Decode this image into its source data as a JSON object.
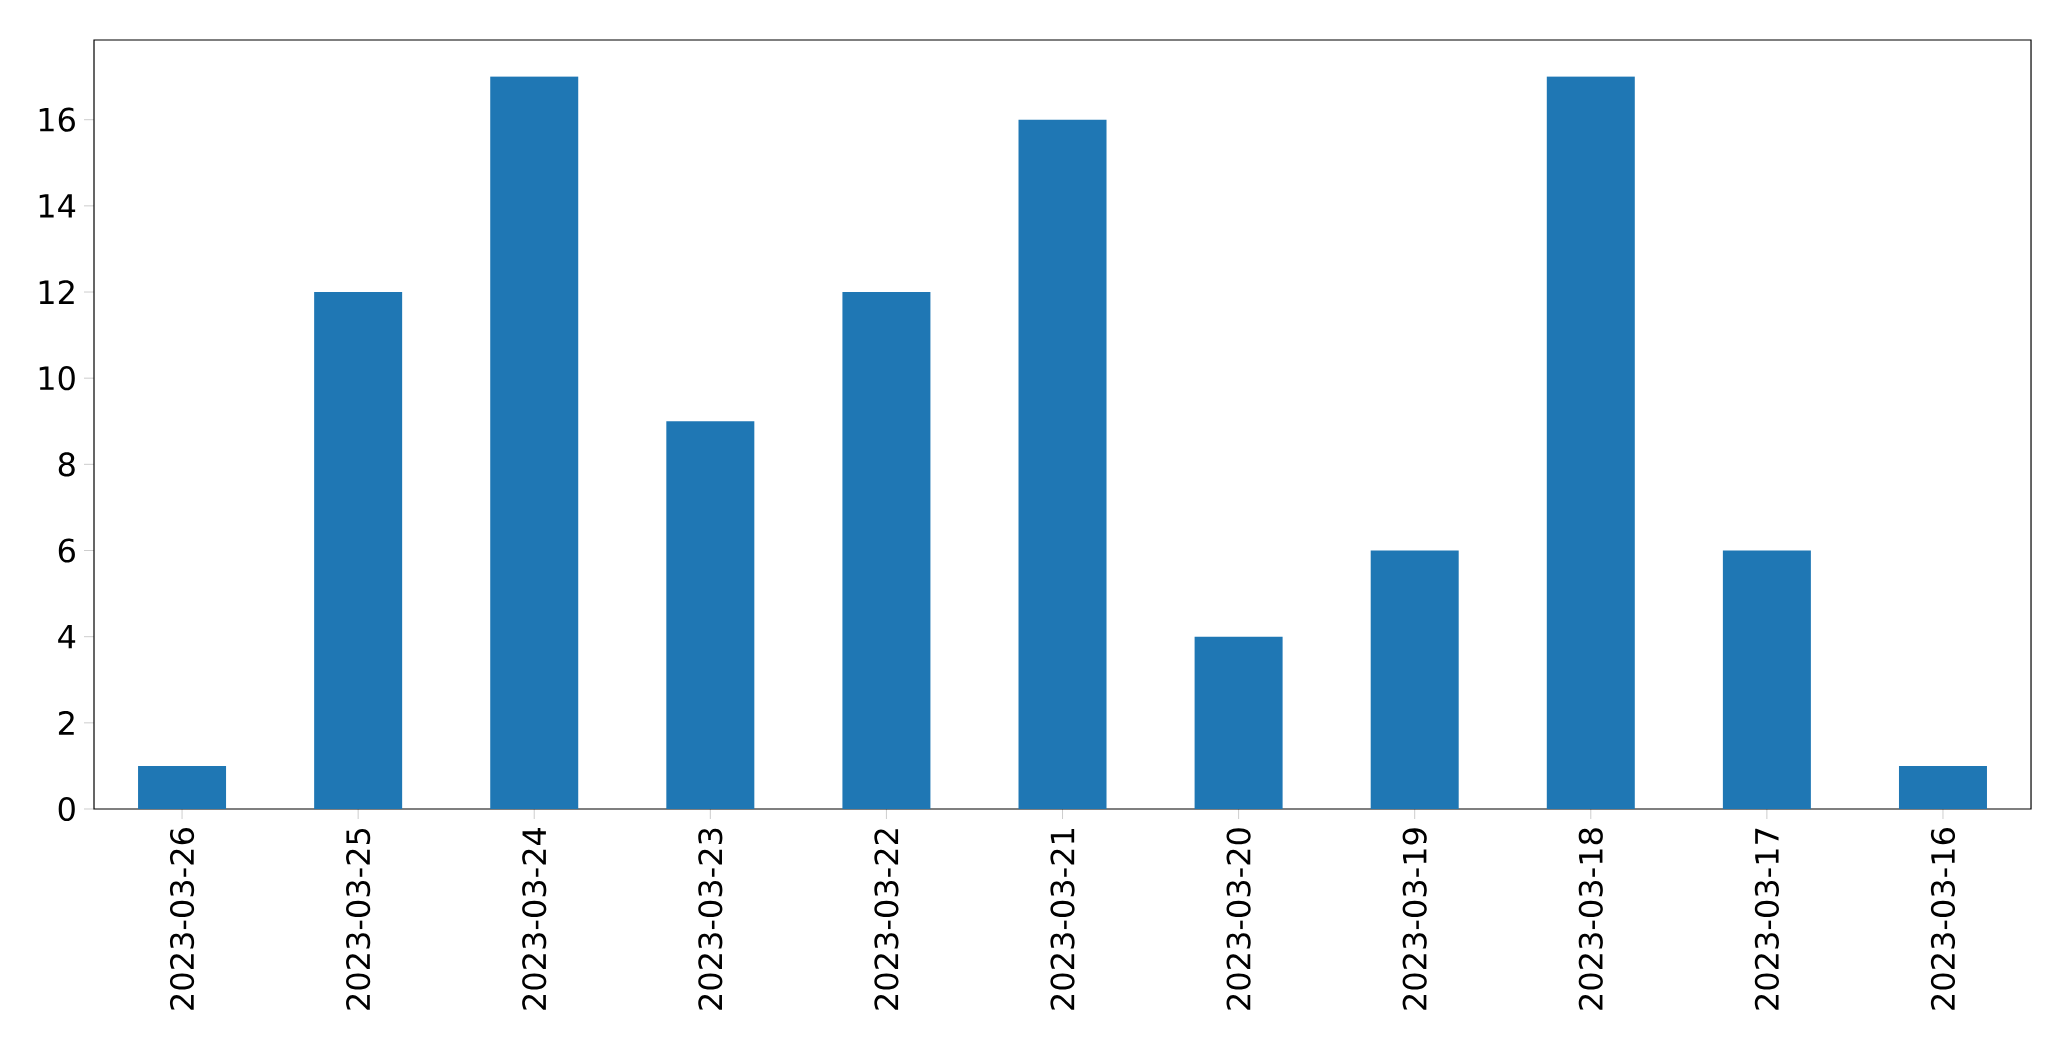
{
  "chart_data": {
    "type": "bar",
    "categories": [
      "2023-03-26",
      "2023-03-25",
      "2023-03-24",
      "2023-03-23",
      "2023-03-22",
      "2023-03-21",
      "2023-03-20",
      "2023-03-19",
      "2023-03-18",
      "2023-03-17",
      "2023-03-16"
    ],
    "values": [
      1,
      12,
      17,
      9,
      12,
      16,
      4,
      6,
      17,
      6,
      1
    ],
    "color": "#1f77b4",
    "ylim": [
      0,
      17.85
    ],
    "yticks": [
      0,
      2,
      4,
      6,
      8,
      10,
      12,
      14,
      16
    ]
  }
}
